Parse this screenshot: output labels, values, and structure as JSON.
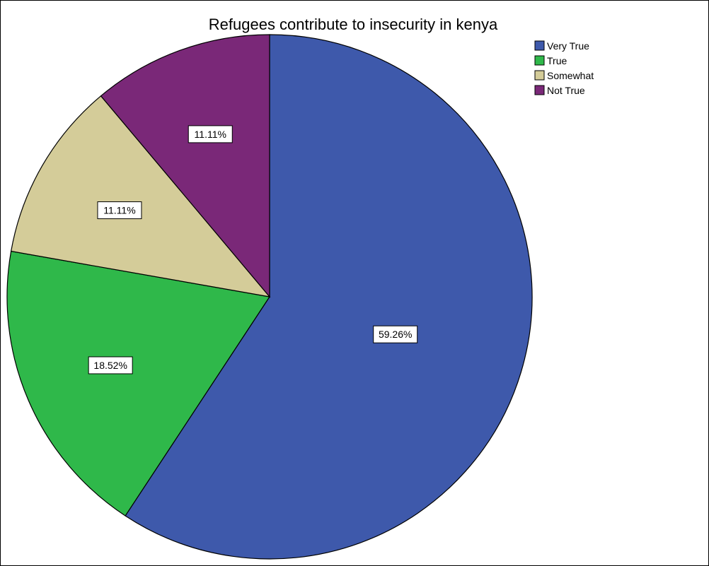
{
  "chart_data": {
    "type": "pie",
    "title": "Refugees contribute to insecurity in kenya",
    "legend_position": "top-right",
    "slices": [
      {
        "label": "Very True",
        "value": 59.26,
        "value_label": "59.26%",
        "color": "#3e59ab"
      },
      {
        "label": "True",
        "value": 18.52,
        "value_label": "18.52%",
        "color": "#2fb84a"
      },
      {
        "label": "Somewhat",
        "value": 11.11,
        "value_label": "11.11%",
        "color": "#d4cc99"
      },
      {
        "label": "Not True",
        "value": 11.11,
        "value_label": "11.11%",
        "color": "#7a2878"
      }
    ]
  }
}
